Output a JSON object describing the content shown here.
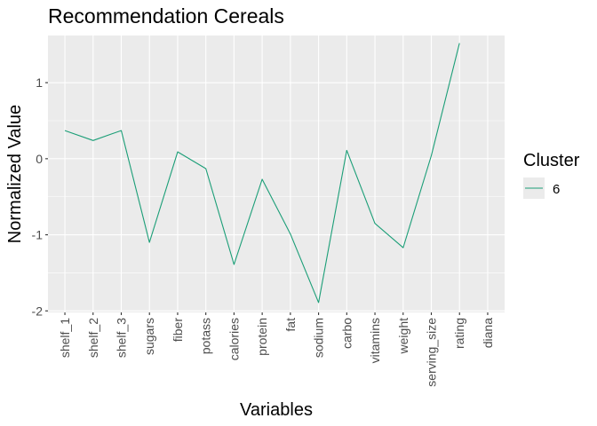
{
  "chart_data": {
    "type": "line",
    "title": "Recommendation Cereals",
    "xlabel": "Variables",
    "ylabel": "Normalized Value",
    "categories": [
      "shelf_1",
      "shelf_2",
      "shelf_3",
      "sugars",
      "fiber",
      "potass",
      "calories",
      "protein",
      "fat",
      "sodium",
      "carbo",
      "vitamins",
      "weight",
      "serving_size",
      "rating",
      "diana"
    ],
    "series": [
      {
        "name": "6",
        "values": [
          0.37,
          0.24,
          0.37,
          -1.1,
          0.09,
          -0.13,
          -1.39,
          -0.27,
          -0.99,
          -1.89,
          0.11,
          -0.85,
          -1.17,
          0.04,
          1.52,
          null
        ]
      }
    ],
    "ylim": [
      -2.02,
      1.62
    ],
    "yticks": [
      -2,
      -1,
      0,
      1
    ],
    "ytick_labels": [
      "-2",
      "-1",
      "0",
      "1"
    ],
    "grid": true,
    "legend": {
      "title": "Cluster",
      "position": "right"
    },
    "colors": {
      "panel": "#ebebeb",
      "grid": "#ffffff",
      "series": "#1b9e77"
    }
  }
}
